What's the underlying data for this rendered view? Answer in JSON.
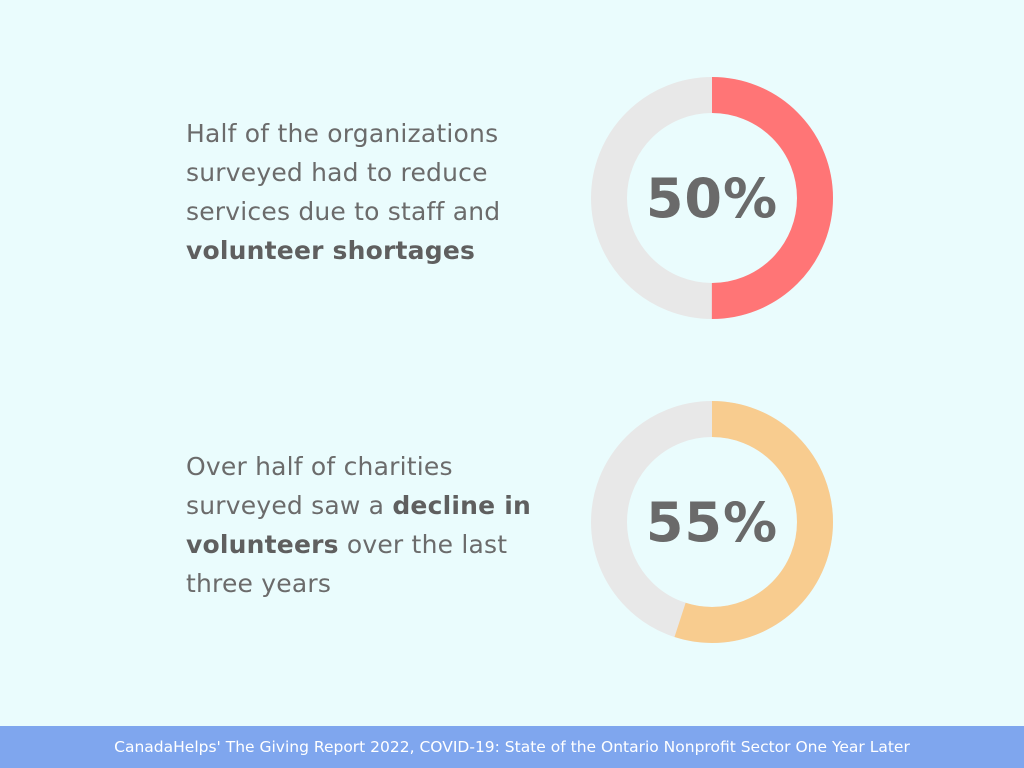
{
  "colors": {
    "background": "#eafcfd",
    "track": "#e8e8e8",
    "accent_1": "#ff7576",
    "accent_2": "#f8cc8f",
    "footer_bg": "#7fa6ee",
    "text": "#6b6b6b"
  },
  "stats": [
    {
      "text_parts": {
        "pre": "Half of the organizations surveyed had to reduce services due to staff and ",
        "bold": "volunteer shortages",
        "post": ""
      },
      "value_label": "50%"
    },
    {
      "text_parts": {
        "pre": "Over half of charities surveyed saw a ",
        "bold": "decline in volunteers",
        "post": " over the last three years"
      },
      "value_label": "55%"
    }
  ],
  "chart_data": [
    {
      "type": "pie",
      "variant": "donut",
      "values": [
        50,
        50
      ],
      "categories": [
        "",
        ""
      ],
      "colors": [
        "#ff7576",
        "#e8e8e8"
      ],
      "center_label": "50%"
    },
    {
      "type": "pie",
      "variant": "donut",
      "values": [
        55,
        45
      ],
      "categories": [
        "",
        ""
      ],
      "colors": [
        "#f8cc8f",
        "#e8e8e8"
      ],
      "center_label": "55%"
    }
  ],
  "footer": {
    "source": "CanadaHelps' The Giving Report 2022, COVID-19: State of the Ontario Nonprofit Sector One Year Later"
  }
}
